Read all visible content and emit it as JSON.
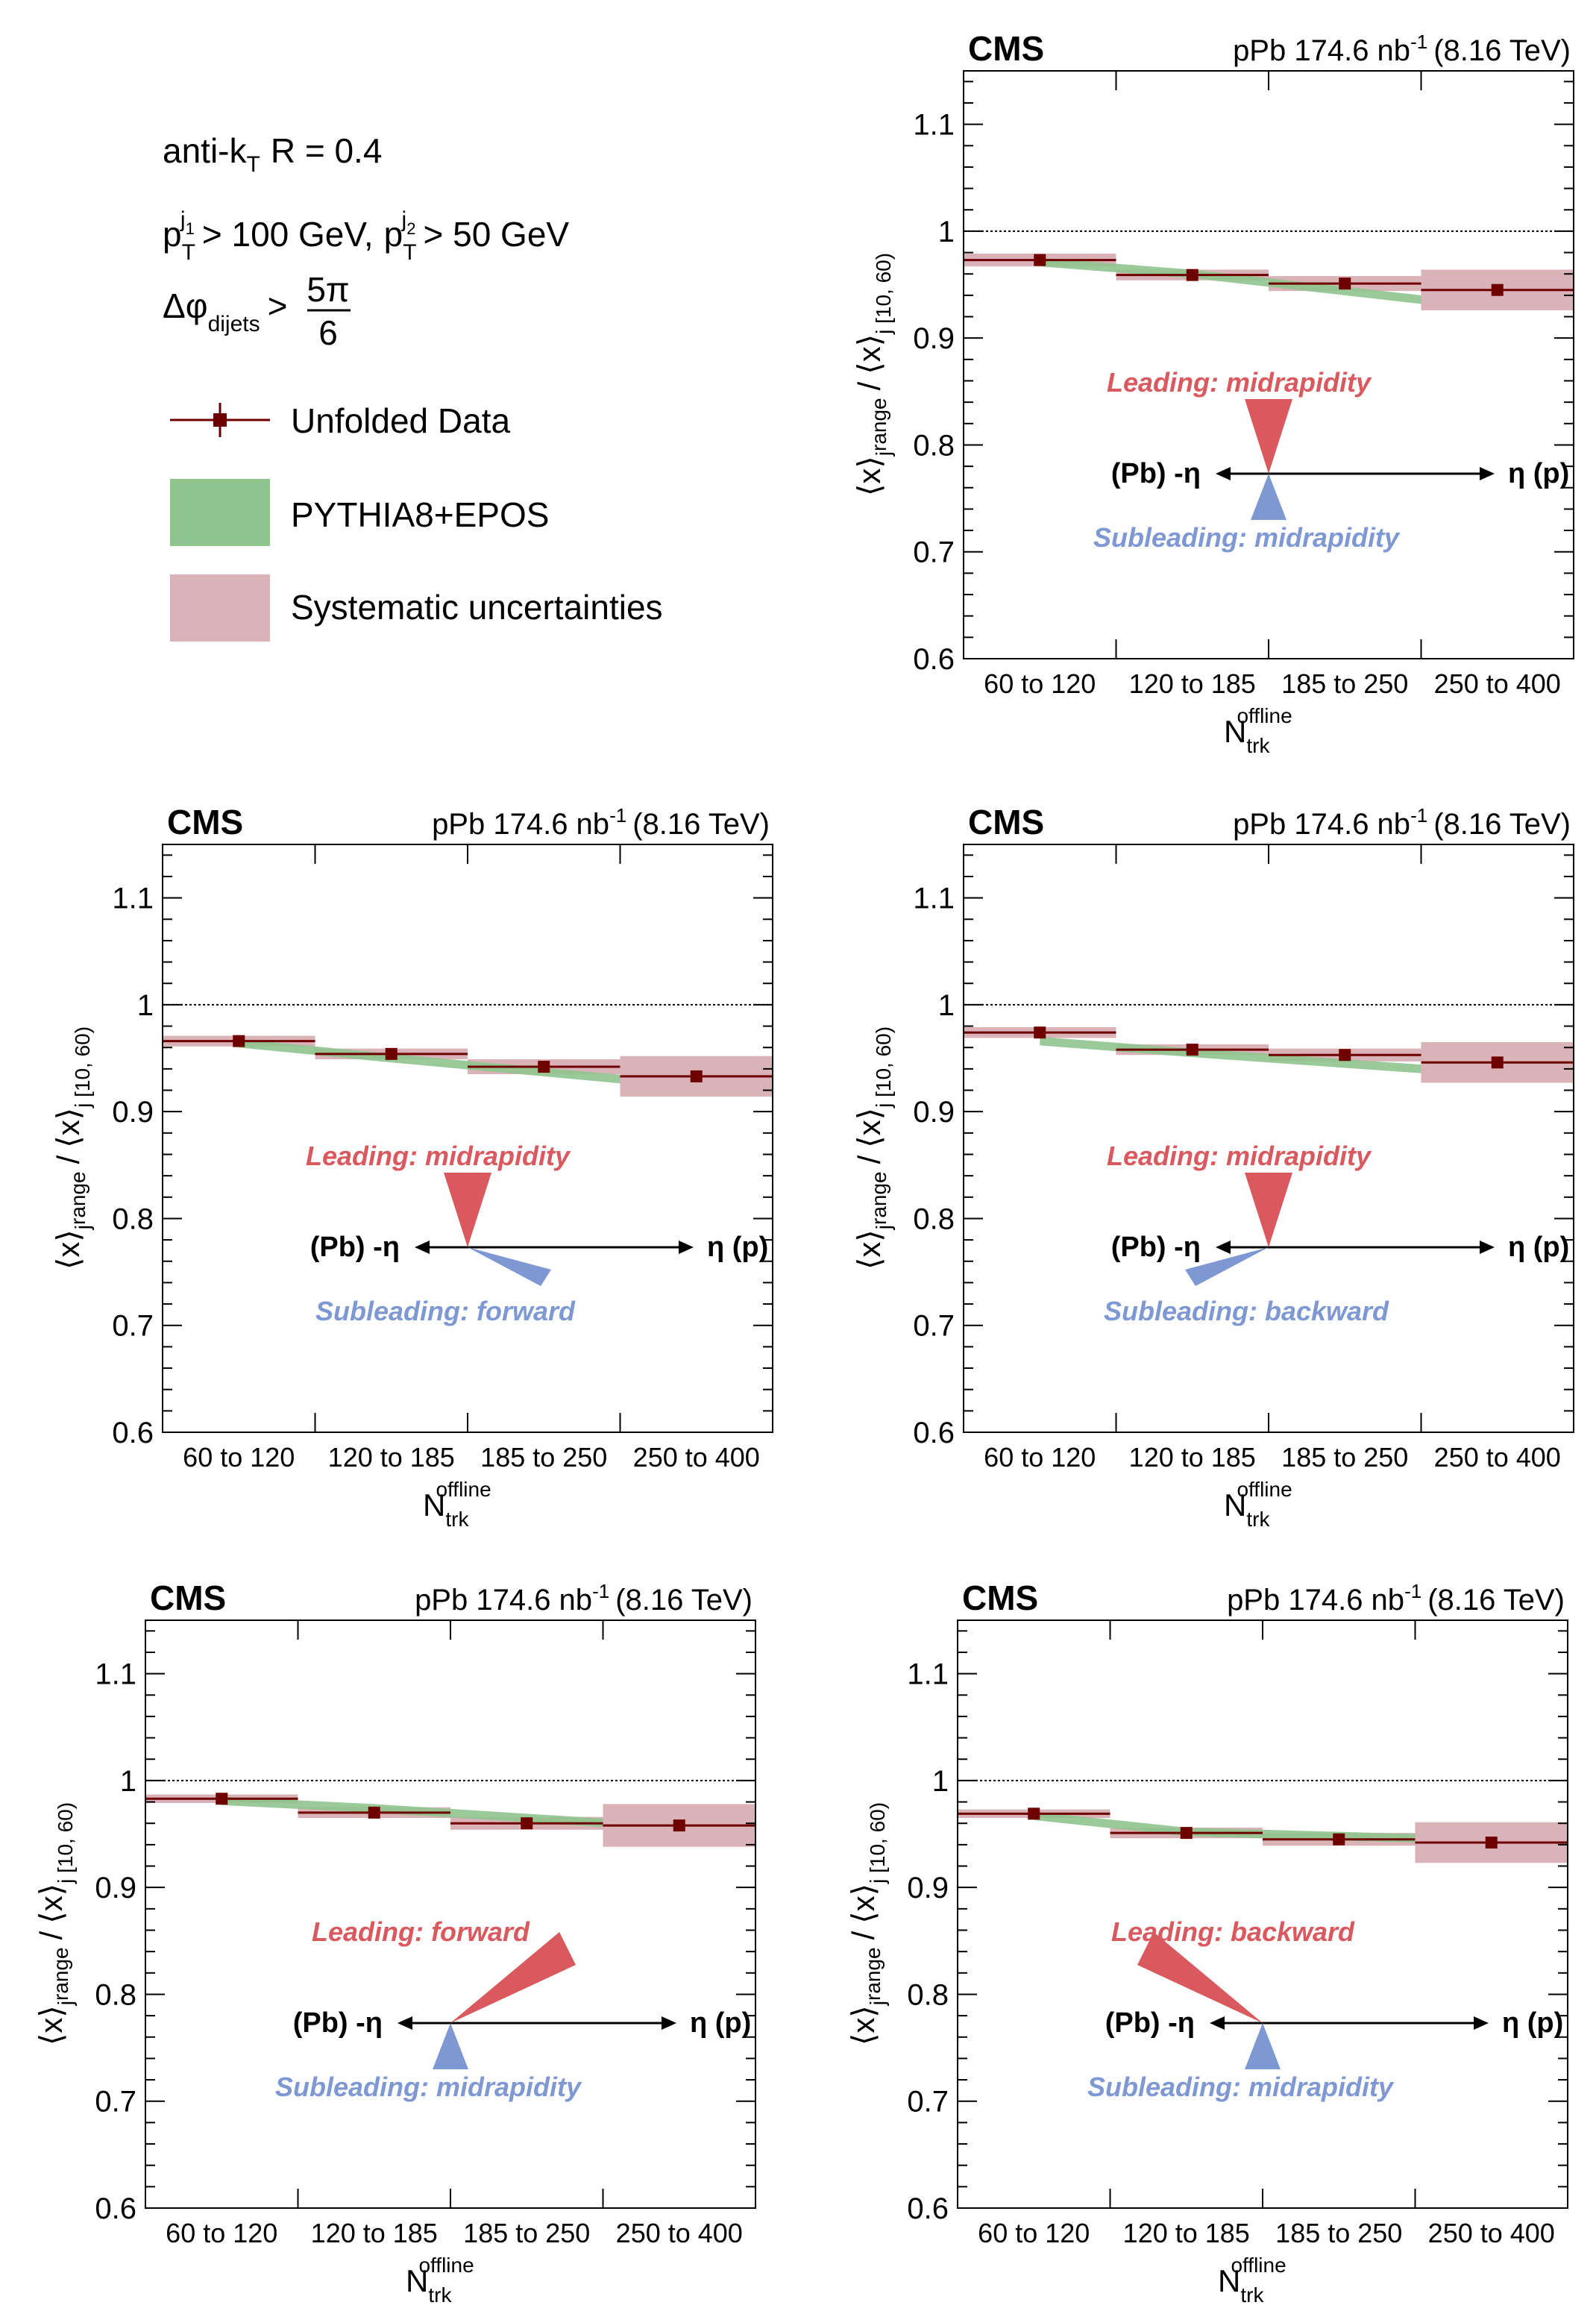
{
  "legend": {
    "algo": "anti-k",
    "algo_sub": "T",
    "algo_rest": "R = 0.4",
    "pt_prefix": "p",
    "pt_sub": "T",
    "pt_sup1": "j",
    "pt_sup1_sub": "1",
    "pt_sup2": "j",
    "pt_sup2_sub": "2",
    "pt_cut1": "> 100 GeV,",
    "pt_cut2": "> 50 GeV",
    "dphi_symbol": "Δφ",
    "dphi_sub": "dijets",
    "dphi_gt": ">",
    "dphi_num": "5π",
    "dphi_den": "6",
    "entries": [
      "Unfolded Data",
      "PYTHIA8+EPOS",
      "Systematic uncertainties"
    ]
  },
  "colors": {
    "data": "#6e0000",
    "model": "#8fc48f",
    "syst": "#d9b3b8",
    "leading": "#d9595e",
    "subleading": "#7e98d4",
    "axis": "#000000"
  },
  "panel_text": {
    "experiment": "CMS",
    "lumi": "pPb 174.6 nb",
    "lumi_exp": "-1",
    "energy": "(8.16 TeV)",
    "eta_left": "(Pb) -η",
    "eta_right": "η (p)",
    "xlabel_main": "N",
    "xlabel_sup": "offline",
    "xlabel_sub": "trk",
    "ylabel": "⟨x⟩",
    "ylabel_sub": "j",
    "ylabel_subsub": "range",
    "ylabel_slash": "/",
    "ylabel_den_sub": "j [10, 60)"
  },
  "chart_data": [
    {
      "type": "line",
      "panel": "top-right",
      "categories": [
        "60 to 120",
        "120 to 185",
        "185 to 250",
        "250 to 400"
      ],
      "ylim": [
        0.6,
        1.15
      ],
      "yticks": [
        "0.6",
        "0.7",
        "0.8",
        "0.9",
        "1",
        "1.1"
      ],
      "reference_line": 1.0,
      "leading_label": "Leading: midrapidity",
      "subleading_label": "Subleading: midrapidity",
      "series": [
        {
          "name": "Unfolded Data",
          "values": [
            0.973,
            0.959,
            0.951,
            0.945
          ]
        },
        {
          "name": "Systematic uncertainties",
          "values": [
            0.006,
            0.005,
            0.007,
            0.019
          ]
        },
        {
          "name": "PYTHIA8+EPOS",
          "values": [
            0.971,
            0.96,
            0.944,
            0.93
          ]
        }
      ]
    },
    {
      "type": "line",
      "panel": "middle-left",
      "categories": [
        "60 to 120",
        "120 to 185",
        "185 to 250",
        "250 to 400"
      ],
      "ylim": [
        0.6,
        1.15
      ],
      "yticks": [
        "0.6",
        "0.7",
        "0.8",
        "0.9",
        "1",
        "1.1"
      ],
      "reference_line": 1.0,
      "leading_label": "Leading: midrapidity",
      "subleading_label": "Subleading: forward",
      "series": [
        {
          "name": "Unfolded Data",
          "values": [
            0.966,
            0.954,
            0.942,
            0.933
          ]
        },
        {
          "name": "Systematic uncertainties",
          "values": [
            0.005,
            0.005,
            0.007,
            0.019
          ]
        },
        {
          "name": "PYTHIA8+EPOS",
          "values": [
            0.964,
            0.95,
            0.937,
            0.924
          ]
        }
      ]
    },
    {
      "type": "line",
      "panel": "middle-right",
      "categories": [
        "60 to 120",
        "120 to 185",
        "185 to 250",
        "250 to 400"
      ],
      "ylim": [
        0.6,
        1.15
      ],
      "yticks": [
        "0.6",
        "0.7",
        "0.8",
        "0.9",
        "1",
        "1.1"
      ],
      "reference_line": 1.0,
      "leading_label": "Leading: midrapidity",
      "subleading_label": "Subleading: backward",
      "series": [
        {
          "name": "Unfolded Data",
          "values": [
            0.974,
            0.958,
            0.953,
            0.946
          ]
        },
        {
          "name": "Systematic uncertainties",
          "values": [
            0.005,
            0.005,
            0.006,
            0.019
          ]
        },
        {
          "name": "PYTHIA8+EPOS",
          "values": [
            0.966,
            0.955,
            0.945,
            0.935
          ]
        }
      ]
    },
    {
      "type": "line",
      "panel": "bottom-left",
      "categories": [
        "60 to 120",
        "120 to 185",
        "185 to 250",
        "250 to 400"
      ],
      "ylim": [
        0.6,
        1.15
      ],
      "yticks": [
        "0.6",
        "0.7",
        "0.8",
        "0.9",
        "1",
        "1.1"
      ],
      "reference_line": 1.0,
      "leading_label": "Leading: forward",
      "subleading_label": "Subleading: midrapidity",
      "series": [
        {
          "name": "Unfolded Data",
          "values": [
            0.983,
            0.97,
            0.96,
            0.958
          ]
        },
        {
          "name": "Systematic uncertainties",
          "values": [
            0.004,
            0.005,
            0.006,
            0.02
          ]
        },
        {
          "name": "PYTHIA8+EPOS",
          "values": [
            0.981,
            0.974,
            0.965,
            0.96
          ]
        }
      ]
    },
    {
      "type": "line",
      "panel": "bottom-right",
      "categories": [
        "60 to 120",
        "120 to 185",
        "185 to 250",
        "250 to 400"
      ],
      "ylim": [
        0.6,
        1.15
      ],
      "yticks": [
        "0.6",
        "0.7",
        "0.8",
        "0.9",
        "1",
        "1.1"
      ],
      "reference_line": 1.0,
      "leading_label": "Leading: backward",
      "subleading_label": "Subleading: midrapidity",
      "series": [
        {
          "name": "Unfolded Data",
          "values": [
            0.969,
            0.951,
            0.945,
            0.942
          ]
        },
        {
          "name": "Systematic uncertainties",
          "values": [
            0.004,
            0.005,
            0.006,
            0.019
          ]
        },
        {
          "name": "PYTHIA8+EPOS",
          "values": [
            0.967,
            0.952,
            0.948,
            0.945
          ]
        }
      ]
    }
  ]
}
